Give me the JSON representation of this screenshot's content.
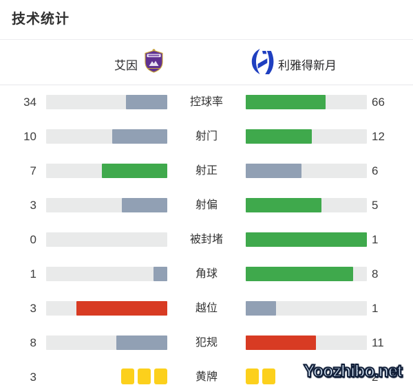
{
  "title": "技术统计",
  "header": {
    "home_team": "艾因",
    "away_team": "利雅得新月",
    "home_logo": "al-ain-crest",
    "away_logo": "al-hilal-crest"
  },
  "watermark": "Yoozhibo.net",
  "colors": {
    "green": "#3fa94c",
    "slate": "#91a0b4",
    "red": "#d83b23",
    "yellow": "#fcd01c",
    "track": "#e9eaea"
  },
  "chart_data": {
    "type": "bar",
    "orientation": "paired-horizontal-bars",
    "teams": [
      "艾因",
      "利雅得新月"
    ],
    "note": "each bar fill = value / (home+away); fills grow from center outward",
    "rows": [
      {
        "label": "控球率",
        "home": 34,
        "away": 66,
        "home_color": "slate",
        "away_color": "green",
        "style": "bar"
      },
      {
        "label": "射门",
        "home": 10,
        "away": 12,
        "home_color": "slate",
        "away_color": "green",
        "style": "bar"
      },
      {
        "label": "射正",
        "home": 7,
        "away": 6,
        "home_color": "green",
        "away_color": "slate",
        "style": "bar"
      },
      {
        "label": "射偏",
        "home": 3,
        "away": 5,
        "home_color": "slate",
        "away_color": "green",
        "style": "bar"
      },
      {
        "label": "被封堵",
        "home": 0,
        "away": 1,
        "home_color": "slate",
        "away_color": "green",
        "style": "bar"
      },
      {
        "label": "角球",
        "home": 1,
        "away": 8,
        "home_color": "slate",
        "away_color": "green",
        "style": "bar"
      },
      {
        "label": "越位",
        "home": 3,
        "away": 1,
        "home_color": "red",
        "away_color": "slate",
        "style": "bar"
      },
      {
        "label": "犯规",
        "home": 8,
        "away": 11,
        "home_color": "slate",
        "away_color": "red",
        "style": "bar"
      },
      {
        "label": "黄牌",
        "home": 3,
        "away": 2,
        "home_color": "yellow",
        "away_color": "yellow",
        "style": "cards"
      }
    ]
  }
}
